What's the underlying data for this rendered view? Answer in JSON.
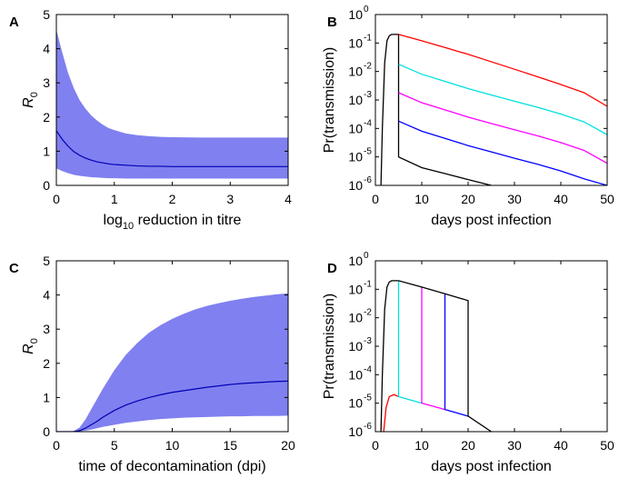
{
  "chart_data": [
    {
      "panel": "A",
      "type": "area",
      "xlabel": "log10 reduction in titre",
      "xlabel_parts": {
        "pre": "log",
        "sub": "10",
        "post": " reduction in titre"
      },
      "ylabel": "R0",
      "ylabel_parts": {
        "main": "R",
        "sub": "0"
      },
      "xlim": [
        0,
        4
      ],
      "ylim": [
        0,
        5
      ],
      "xticks": [
        "0",
        "1",
        "2",
        "3",
        "4"
      ],
      "yticks": [
        "0",
        "1",
        "2",
        "3",
        "4",
        "5"
      ],
      "fill_color": "#8080f0",
      "line_color": "#0000b4",
      "series": [
        {
          "role": "upper",
          "x": [
            0,
            0.1,
            0.2,
            0.3,
            0.4,
            0.5,
            0.6,
            0.7,
            0.8,
            0.9,
            1.0,
            1.2,
            1.4,
            1.6,
            1.8,
            2.0,
            2.5,
            3.0,
            3.5,
            4.0
          ],
          "y": [
            4.55,
            3.9,
            3.3,
            2.85,
            2.5,
            2.25,
            2.05,
            1.9,
            1.78,
            1.68,
            1.62,
            1.52,
            1.47,
            1.44,
            1.42,
            1.41,
            1.4,
            1.4,
            1.4,
            1.4
          ]
        },
        {
          "role": "median",
          "x": [
            0,
            0.1,
            0.2,
            0.3,
            0.4,
            0.5,
            0.6,
            0.7,
            0.8,
            0.9,
            1.0,
            1.2,
            1.4,
            1.6,
            1.8,
            2.0,
            2.5,
            3.0,
            3.5,
            4.0
          ],
          "y": [
            1.6,
            1.35,
            1.15,
            0.99,
            0.88,
            0.8,
            0.74,
            0.69,
            0.66,
            0.63,
            0.61,
            0.59,
            0.57,
            0.56,
            0.56,
            0.55,
            0.55,
            0.55,
            0.55,
            0.55
          ]
        },
        {
          "role": "lower",
          "x": [
            0,
            0.1,
            0.2,
            0.3,
            0.4,
            0.5,
            0.6,
            0.7,
            0.8,
            0.9,
            1.0,
            1.2,
            1.4,
            1.6,
            1.8,
            2.0,
            2.5,
            3.0,
            3.5,
            4.0
          ],
          "y": [
            0.5,
            0.42,
            0.36,
            0.31,
            0.28,
            0.26,
            0.24,
            0.23,
            0.22,
            0.21,
            0.21,
            0.2,
            0.2,
            0.2,
            0.2,
            0.2,
            0.2,
            0.2,
            0.2,
            0.2
          ]
        }
      ]
    },
    {
      "panel": "B",
      "type": "line",
      "yscale": "log",
      "xlabel": "days post infection",
      "ylabel": "Pr(transmission)",
      "xlim": [
        0,
        50
      ],
      "ylim": [
        1e-06,
        1
      ],
      "xticks": [
        "0",
        "10",
        "20",
        "30",
        "40",
        "50"
      ],
      "yticks": [
        {
          "base": "10",
          "exp": "-6"
        },
        {
          "base": "10",
          "exp": "-5"
        },
        {
          "base": "10",
          "exp": "-4"
        },
        {
          "base": "10",
          "exp": "-3"
        },
        {
          "base": "10",
          "exp": "-2"
        },
        {
          "base": "10",
          "exp": "-1"
        },
        {
          "base": "10",
          "exp": "0"
        }
      ],
      "series": [
        {
          "color": "#000000",
          "x": [
            1.2,
            1.5,
            2,
            2.5,
            3,
            3.5,
            4,
            4.5,
            5,
            5,
            10,
            15,
            20,
            25
          ],
          "y": [
            1e-06,
            0.0001,
            0.02,
            0.12,
            0.18,
            0.2,
            0.2,
            0.2,
            0.2,
            1e-05,
            4.2e-06,
            2.6e-06,
            1.6e-06,
            1e-06
          ]
        },
        {
          "color": "#ff0000",
          "x": [
            5,
            10,
            15,
            20,
            25,
            30,
            35,
            40,
            45,
            50
          ],
          "y": [
            0.2,
            0.12,
            0.07,
            0.04,
            0.022,
            0.012,
            0.0065,
            0.0035,
            0.0018,
            0.0006
          ]
        },
        {
          "color": "#00e0e0",
          "x": [
            5,
            10,
            15,
            20,
            25,
            30,
            35,
            40,
            45,
            50
          ],
          "y": [
            0.018,
            0.008,
            0.0045,
            0.0025,
            0.0015,
            0.0009,
            0.00055,
            0.00032,
            0.00017,
            6e-05
          ]
        },
        {
          "color": "#ff00ff",
          "x": [
            5,
            10,
            15,
            20,
            25,
            30,
            35,
            40,
            45,
            50
          ],
          "y": [
            0.0018,
            0.0008,
            0.00045,
            0.00025,
            0.00015,
            9e-05,
            5.5e-05,
            3.2e-05,
            1.7e-05,
            6e-06
          ]
        },
        {
          "color": "#0000ff",
          "x": [
            5,
            10,
            15,
            20,
            25,
            30,
            35,
            40,
            45,
            50
          ],
          "y": [
            0.00018,
            8e-05,
            4.5e-05,
            2.5e-05,
            1.5e-05,
            9e-06,
            5.5e-06,
            3.2e-06,
            1.7e-06,
            1e-06
          ]
        }
      ]
    },
    {
      "panel": "C",
      "type": "area",
      "xlabel": "time of decontamination (dpi)",
      "ylabel": "R0",
      "ylabel_parts": {
        "main": "R",
        "sub": "0"
      },
      "xlim": [
        0,
        20
      ],
      "ylim": [
        0,
        5
      ],
      "xticks": [
        "0",
        "5",
        "10",
        "15",
        "20"
      ],
      "yticks": [
        "0",
        "1",
        "2",
        "3",
        "4",
        "5"
      ],
      "fill_color": "#8080f0",
      "line_color": "#0000b4",
      "series": [
        {
          "role": "upper",
          "x": [
            0,
            1,
            1.5,
            2,
            2.5,
            3,
            3.5,
            4,
            5,
            6,
            7,
            8,
            9,
            10,
            11,
            12,
            13,
            14,
            15,
            16,
            17,
            18,
            19,
            20
          ],
          "y": [
            0,
            0,
            0.02,
            0.12,
            0.35,
            0.65,
            0.95,
            1.25,
            1.8,
            2.25,
            2.6,
            2.9,
            3.12,
            3.3,
            3.45,
            3.58,
            3.68,
            3.76,
            3.83,
            3.89,
            3.94,
            3.98,
            4.02,
            4.05
          ]
        },
        {
          "role": "median",
          "x": [
            0,
            1,
            1.5,
            2,
            2.5,
            3,
            3.5,
            4,
            5,
            6,
            7,
            8,
            9,
            10,
            11,
            12,
            13,
            14,
            15,
            16,
            17,
            18,
            19,
            20
          ],
          "y": [
            0,
            0,
            0,
            0.03,
            0.1,
            0.2,
            0.3,
            0.42,
            0.62,
            0.78,
            0.9,
            1.0,
            1.08,
            1.15,
            1.2,
            1.25,
            1.3,
            1.34,
            1.38,
            1.41,
            1.43,
            1.45,
            1.47,
            1.48
          ]
        },
        {
          "role": "lower",
          "x": [
            0,
            1,
            1.5,
            2,
            2.5,
            3,
            3.5,
            4,
            5,
            6,
            7,
            8,
            9,
            10,
            11,
            12,
            13,
            14,
            15,
            16,
            17,
            18,
            19,
            20
          ],
          "y": [
            0,
            0,
            0,
            0.01,
            0.03,
            0.06,
            0.1,
            0.14,
            0.2,
            0.26,
            0.3,
            0.34,
            0.37,
            0.39,
            0.41,
            0.42,
            0.43,
            0.44,
            0.45,
            0.45,
            0.46,
            0.46,
            0.46,
            0.47
          ]
        }
      ]
    },
    {
      "panel": "D",
      "type": "line",
      "yscale": "log",
      "xlabel": "days post infection",
      "ylabel": "Pr(transmission)",
      "xlim": [
        0,
        50
      ],
      "ylim": [
        1e-06,
        1
      ],
      "xticks": [
        "0",
        "10",
        "20",
        "30",
        "40",
        "50"
      ],
      "yticks": [
        {
          "base": "10",
          "exp": "-6"
        },
        {
          "base": "10",
          "exp": "-5"
        },
        {
          "base": "10",
          "exp": "-4"
        },
        {
          "base": "10",
          "exp": "-3"
        },
        {
          "base": "10",
          "exp": "-2"
        },
        {
          "base": "10",
          "exp": "-1"
        },
        {
          "base": "10",
          "exp": "0"
        }
      ],
      "series": [
        {
          "color": "#ff0000",
          "x": [
            1.8,
            2.3,
            3,
            4,
            5
          ],
          "y": [
            1e-06,
            7e-06,
            1.7e-05,
            2e-05,
            1.7e-05
          ]
        },
        {
          "color": "#00e0e0",
          "x": [
            5,
            5,
            10
          ],
          "y": [
            0.2,
            1.7e-05,
            1e-05
          ]
        },
        {
          "color": "#ff00ff",
          "x": [
            10,
            10,
            15
          ],
          "y": [
            0.12,
            1e-05,
            6e-06
          ]
        },
        {
          "color": "#0000ff",
          "x": [
            15,
            15,
            20
          ],
          "y": [
            0.07,
            6e-06,
            3.5e-06
          ]
        },
        {
          "color": "#000000",
          "x": [
            1.2,
            1.5,
            2,
            2.5,
            3,
            3.5,
            4,
            4.5,
            5,
            10,
            15,
            20,
            20,
            25
          ],
          "y": [
            1e-06,
            0.0001,
            0.02,
            0.12,
            0.18,
            0.2,
            0.2,
            0.2,
            0.2,
            0.12,
            0.07,
            0.04,
            3.5e-06,
            1e-06
          ]
        }
      ]
    }
  ]
}
